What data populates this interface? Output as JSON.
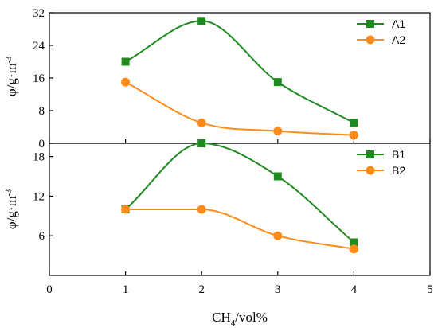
{
  "colors": {
    "series1": "#1f8a1f",
    "series2": "#ff8c1a",
    "axis": "#000000"
  },
  "chart_data": [
    {
      "type": "line",
      "panel": "top",
      "x": [
        1,
        2,
        3,
        4
      ],
      "series": [
        {
          "name": "A1",
          "values": [
            20,
            30,
            15,
            5
          ],
          "marker": "square",
          "color": "#1f8a1f"
        },
        {
          "name": "A2",
          "values": [
            15,
            5,
            3,
            2
          ],
          "marker": "circle",
          "color": "#ff8c1a"
        }
      ],
      "ylabel": "φ/g·m",
      "ylabel_sup": "-3",
      "xlim": [
        0,
        5
      ],
      "ylim": [
        0,
        32
      ],
      "yticks": [
        0,
        8,
        16,
        24,
        32
      ],
      "xticks": [
        0,
        1,
        2,
        3,
        4,
        5
      ],
      "smooth": true,
      "legend": "top-right",
      "grid": false
    },
    {
      "type": "line",
      "panel": "bottom",
      "x": [
        1,
        2,
        3,
        4
      ],
      "series": [
        {
          "name": "B1",
          "values": [
            10,
            20,
            15,
            5
          ],
          "marker": "square",
          "color": "#1f8a1f"
        },
        {
          "name": "B2",
          "values": [
            10,
            10,
            6,
            4
          ],
          "marker": "circle",
          "color": "#ff8c1a"
        }
      ],
      "ylabel": "φ/g·m",
      "ylabel_sup": "-3",
      "xlabel": "CH",
      "xlabel_sub": "4",
      "xlabel_suffix": "/vol%",
      "xlim": [
        0,
        5
      ],
      "ylim": [
        0,
        20
      ],
      "yticks": [
        6,
        12,
        18
      ],
      "xticks": [
        0,
        1,
        2,
        3,
        4,
        5
      ],
      "smooth": true,
      "legend": "top-right",
      "grid": false
    }
  ]
}
